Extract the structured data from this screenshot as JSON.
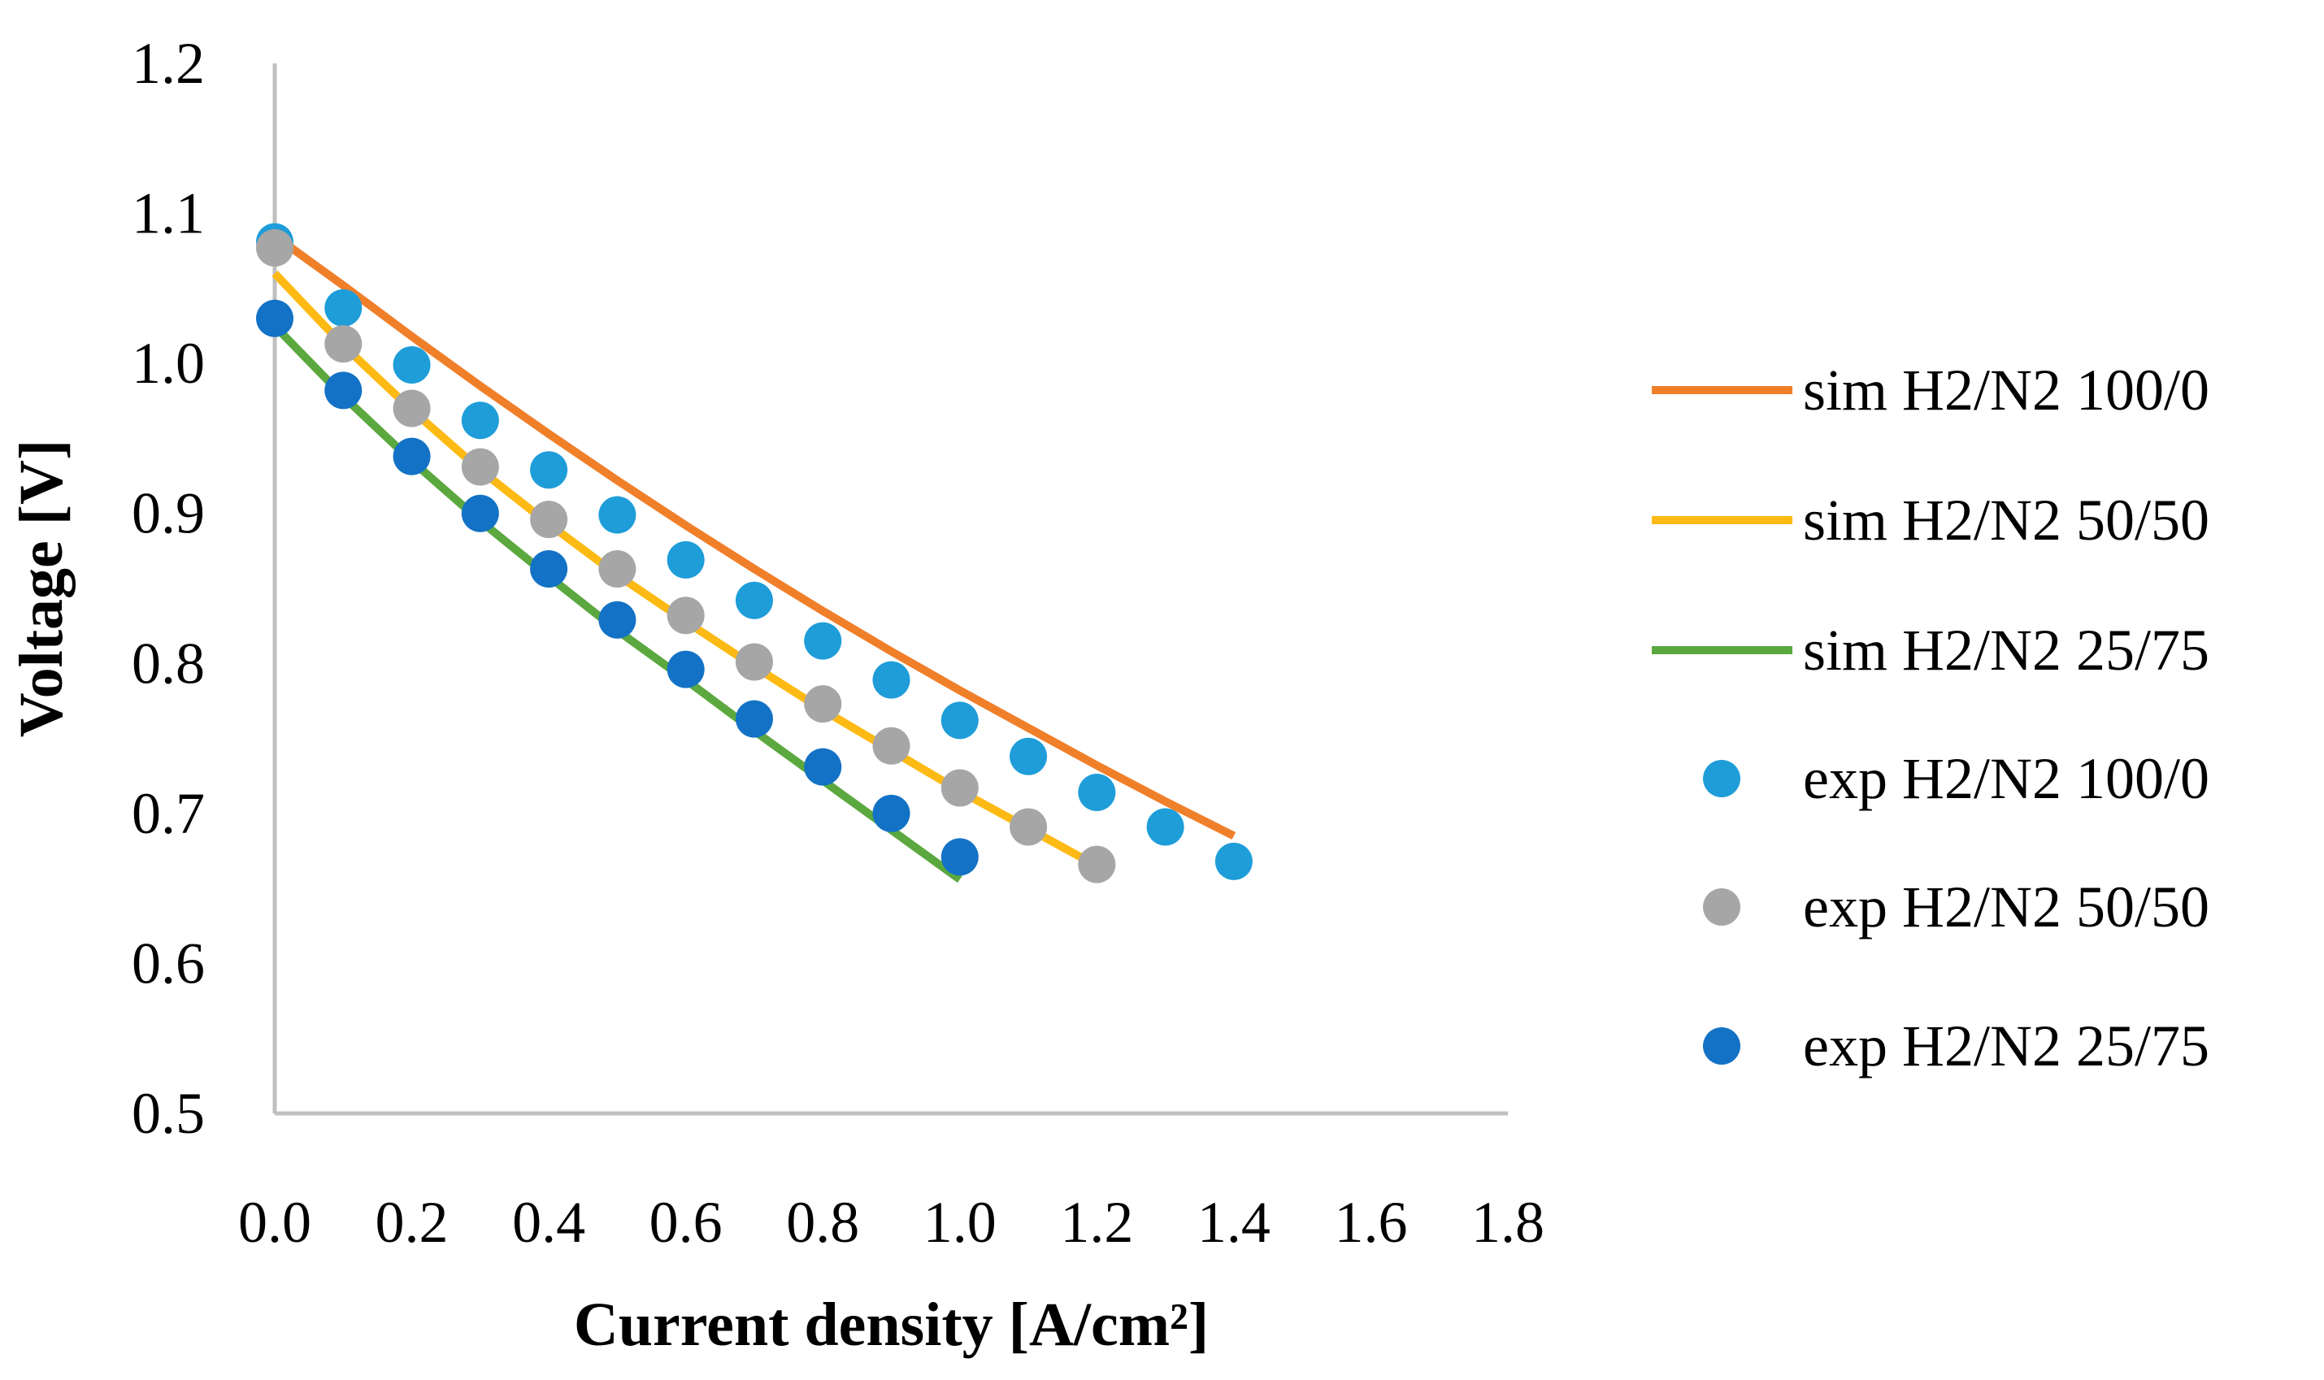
{
  "chart_data": {
    "type": "scatter",
    "title": "",
    "xlabel": "Current density [A/cm²]",
    "ylabel": "Voltage [V]",
    "xlim": [
      0.0,
      1.8
    ],
    "ylim": [
      0.5,
      1.2
    ],
    "x_ticks": [
      "0.0",
      "0.2",
      "0.4",
      "0.6",
      "0.8",
      "1.0",
      "1.2",
      "1.4",
      "1.6",
      "1.8"
    ],
    "y_ticks": [
      "0.5",
      "0.6",
      "0.7",
      "0.8",
      "0.9",
      "1.0",
      "1.1",
      "1.2"
    ],
    "grid": false,
    "legend_position": "right",
    "series": [
      {
        "name": "sim H2/N2 100/0",
        "kind": "line",
        "color": "#F07F2A",
        "x": [
          0.0,
          0.1,
          0.2,
          0.3,
          0.4,
          0.5,
          0.6,
          0.7,
          0.8,
          0.9,
          1.0,
          1.1,
          1.2,
          1.3,
          1.4
        ],
        "y": [
          1.085,
          1.052,
          1.018,
          0.985,
          0.953,
          0.922,
          0.892,
          0.863,
          0.835,
          0.808,
          0.782,
          0.757,
          0.732,
          0.708,
          0.685
        ]
      },
      {
        "name": "sim H2/N2 50/50",
        "kind": "line",
        "color": "#FDBA14",
        "x": [
          0.0,
          0.1,
          0.2,
          0.3,
          0.4,
          0.5,
          0.6,
          0.7,
          0.8,
          0.9,
          1.0,
          1.1,
          1.2
        ],
        "y": [
          1.06,
          1.012,
          0.969,
          0.929,
          0.893,
          0.859,
          0.828,
          0.798,
          0.769,
          0.742,
          0.715,
          0.69,
          0.665
        ]
      },
      {
        "name": "sim H2/N2 25/75",
        "kind": "line",
        "color": "#5BA83F",
        "x": [
          0.0,
          0.1,
          0.2,
          0.3,
          0.4,
          0.5,
          0.6,
          0.7,
          0.8,
          0.9,
          1.0
        ],
        "y": [
          1.025,
          0.978,
          0.935,
          0.895,
          0.858,
          0.822,
          0.789,
          0.755,
          0.722,
          0.689,
          0.656
        ]
      },
      {
        "name": "exp H2/N2 100/0",
        "kind": "scatter",
        "color": "#1E9DD9",
        "x": [
          0.0,
          0.1,
          0.2,
          0.3,
          0.4,
          0.5,
          0.6,
          0.7,
          0.8,
          0.9,
          1.0,
          1.1,
          1.2,
          1.3,
          1.4
        ],
        "y": [
          1.081,
          1.037,
          0.999,
          0.962,
          0.929,
          0.899,
          0.869,
          0.842,
          0.815,
          0.789,
          0.762,
          0.738,
          0.714,
          0.691,
          0.668
        ]
      },
      {
        "name": "exp H2/N2 50/50",
        "kind": "scatter",
        "color": "#A6A6A6",
        "x": [
          0.0,
          0.1,
          0.2,
          0.3,
          0.4,
          0.5,
          0.6,
          0.7,
          0.8,
          0.9,
          1.0,
          1.1,
          1.2
        ],
        "y": [
          1.077,
          1.013,
          0.97,
          0.931,
          0.896,
          0.863,
          0.832,
          0.801,
          0.773,
          0.745,
          0.717,
          0.691,
          0.666
        ]
      },
      {
        "name": "exp H2/N2 25/75",
        "kind": "scatter",
        "color": "#1372C5",
        "x": [
          0.0,
          0.1,
          0.2,
          0.3,
          0.4,
          0.5,
          0.6,
          0.7,
          0.8,
          0.9,
          1.0
        ],
        "y": [
          1.03,
          0.982,
          0.938,
          0.9,
          0.863,
          0.829,
          0.796,
          0.763,
          0.731,
          0.7,
          0.671
        ]
      }
    ]
  },
  "colors": {
    "axis": "#BFBFBF",
    "text": "#000000",
    "background": "#FFFFFF"
  }
}
